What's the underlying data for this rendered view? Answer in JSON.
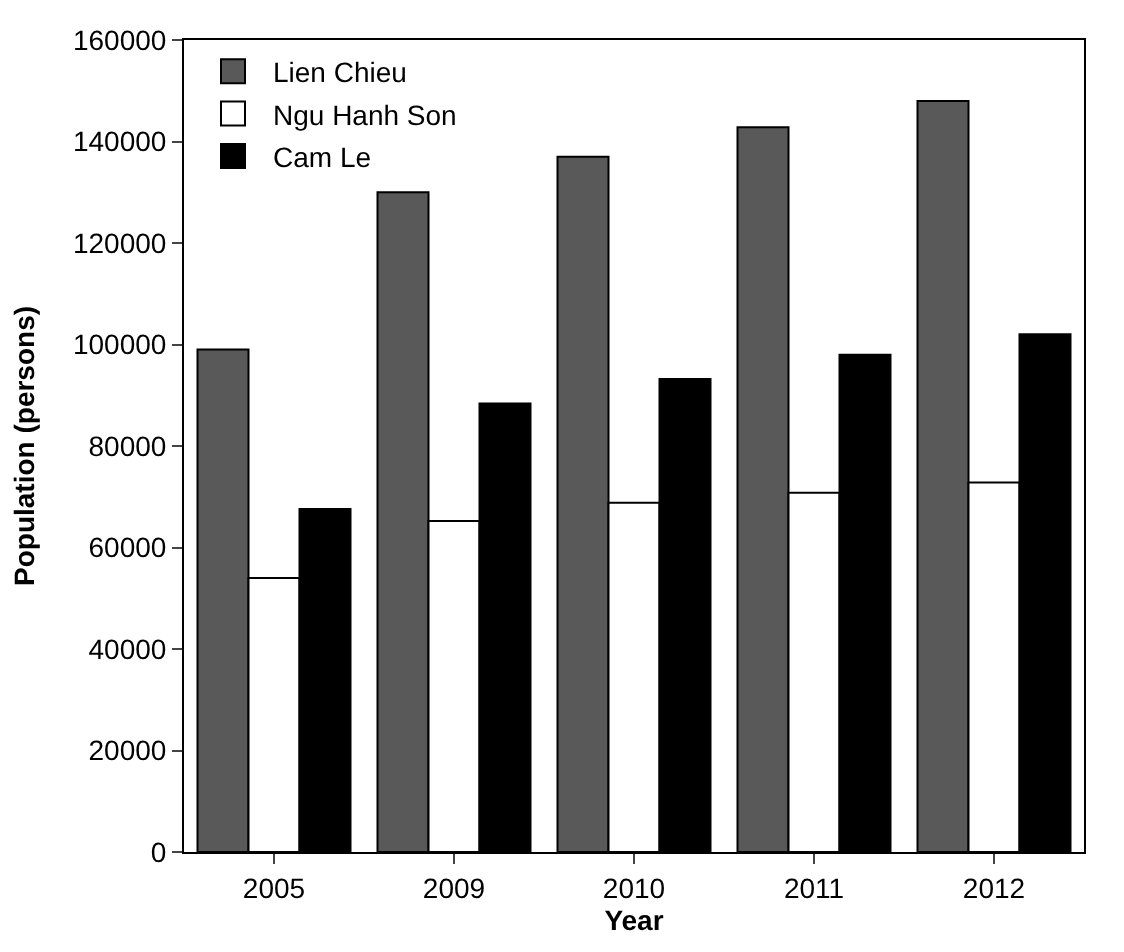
{
  "chart_data": {
    "type": "bar",
    "xlabel": "Year",
    "ylabel": "Population (persons)",
    "categories": [
      "2005",
      "2009",
      "2010",
      "2011",
      "2012"
    ],
    "series": [
      {
        "name": "Lien Chieu",
        "color": "#595959",
        "values": [
          99000,
          130000,
          137000,
          142800,
          148000
        ]
      },
      {
        "name": "Ngu Hanh Son",
        "color": "#ffffff",
        "values": [
          54000,
          65200,
          68800,
          70800,
          72800
        ]
      },
      {
        "name": "Cam Le",
        "color": "#000000",
        "values": [
          67600,
          88400,
          93200,
          98000,
          102000
        ]
      }
    ],
    "ylim": [
      0,
      160000
    ],
    "yticks": [
      0,
      20000,
      40000,
      60000,
      80000,
      100000,
      120000,
      140000,
      160000
    ],
    "legend": "top left"
  }
}
